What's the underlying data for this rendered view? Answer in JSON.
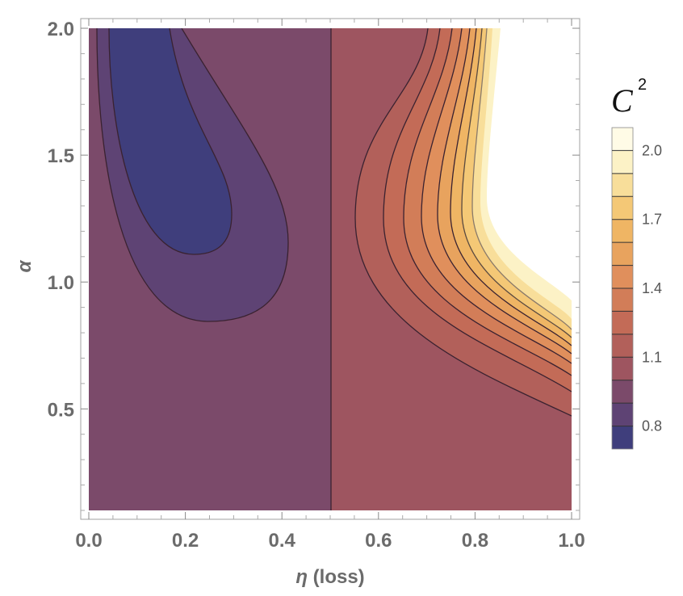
{
  "chart_data": {
    "type": "contour",
    "title": "",
    "xlabel_symbol": "η",
    "xlabel_text": " (loss)",
    "ylabel": "α",
    "xlim": [
      0.0,
      1.0
    ],
    "ylim": [
      0.1,
      2.0
    ],
    "x_ticks": [
      "0.0",
      "0.2",
      "0.4",
      "0.6",
      "0.8",
      "1.0"
    ],
    "x_tick_values": [
      0.0,
      0.2,
      0.4,
      0.6,
      0.8,
      1.0
    ],
    "y_ticks": [
      "0.5",
      "1.0",
      "1.5",
      "2.0"
    ],
    "y_tick_values": [
      0.5,
      1.0,
      1.5,
      2.0
    ],
    "legend": {
      "title": "C",
      "title_superscript": "2",
      "labels": [
        "0.8",
        "1.1",
        "1.4",
        "1.7",
        "2.0"
      ],
      "label_values": [
        0.8,
        1.1,
        1.4,
        1.7,
        2.0
      ],
      "range": [
        0.7,
        2.1
      ],
      "levels": [
        0.8,
        0.9,
        1.0,
        1.1,
        1.2,
        1.3,
        1.4,
        1.5,
        1.6,
        1.7,
        1.8,
        1.9,
        2.0
      ],
      "band_colors": [
        "#3f3e7c",
        "#5e4374",
        "#7b4a6a",
        "#9e5560",
        "#b2605a",
        "#c36b57",
        "#d27d58",
        "#e08f5c",
        "#e8a35e",
        "#efb564",
        "#f4c876",
        "#f8de9a",
        "#fcf2c6",
        "#fffbe6"
      ]
    },
    "features": {
      "vertical_line_eta": 0.5,
      "inner_contour_min_alpha": 1.1,
      "outer_contour_min_alpha": 0.83,
      "undefined_region": "upper-right (η > 0.83, α > 0.9) left blank"
    }
  }
}
